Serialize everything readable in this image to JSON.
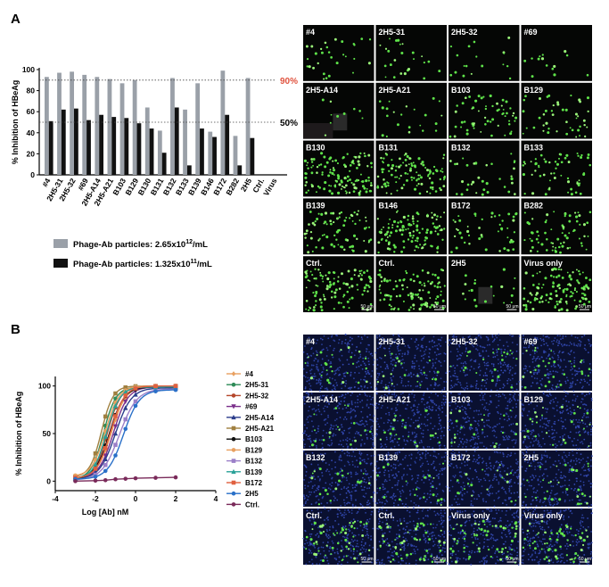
{
  "panel_a": {
    "label": "A",
    "legend": {
      "gray_text": "Phage-Ab particles: 2.65x10",
      "gray_exp": "12",
      "gray_unit": "/mL",
      "black_text": "Phage-Ab particles: 1.325x10",
      "black_exp": "11",
      "black_unit": "/mL"
    },
    "ref_lines": [
      {
        "value": 90,
        "label": "90%",
        "color": "#e0533f"
      },
      {
        "value": 50,
        "label": "50%",
        "color": "#000000"
      }
    ],
    "images": {
      "labels": [
        "#4",
        "2H5-31",
        "2H5-32",
        "#69",
        "2H5-A14",
        "2H5-A21",
        "B103",
        "B129",
        "B130",
        "B131",
        "B132",
        "B133",
        "B139",
        "B146",
        "B172",
        "B282",
        "Ctrl.",
        "Ctrl.",
        "2H5",
        "Virus only"
      ],
      "scale_bar": "50 μm",
      "density": [
        30,
        25,
        18,
        14,
        10,
        22,
        60,
        45,
        130,
        110,
        35,
        60,
        80,
        120,
        50,
        70,
        110,
        110,
        20,
        120
      ],
      "patch_tiles": [
        4,
        18
      ]
    }
  },
  "panel_b": {
    "label": "B",
    "legend": [
      {
        "label": "#4",
        "color": "#e8a060",
        "marker": "diamond"
      },
      {
        "label": "2H5-31",
        "color": "#2e8b57",
        "marker": "circle"
      },
      {
        "label": "2H5-32",
        "color": "#b5472b",
        "marker": "circle"
      },
      {
        "label": "#69",
        "color": "#7a2f8a",
        "marker": "triangle-down"
      },
      {
        "label": "2H5-A14",
        "color": "#2c3e8c",
        "marker": "triangle"
      },
      {
        "label": "2H5-A21",
        "color": "#a08040",
        "marker": "square"
      },
      {
        "label": "B103",
        "color": "#111111",
        "marker": "circle"
      },
      {
        "label": "B129",
        "color": "#e8a060",
        "marker": "circle"
      },
      {
        "label": "B132",
        "color": "#9b7fc8",
        "marker": "square"
      },
      {
        "label": "B139",
        "color": "#2aa198",
        "marker": "triangle"
      },
      {
        "label": "B172",
        "color": "#e06040",
        "marker": "square"
      },
      {
        "label": "2H5",
        "color": "#2a70c8",
        "marker": "circle"
      },
      {
        "label": "Ctrl.",
        "color": "#7a2a5a",
        "marker": "circle"
      }
    ],
    "images": {
      "labels": [
        "#4",
        "2H5-31",
        "2H5-32",
        "#69",
        "2H5-A14",
        "2H5-A21",
        "B103",
        "B129",
        "B132",
        "B139",
        "B172",
        "2H5",
        "Ctrl.",
        "Ctrl.",
        "Virus only",
        "Virus only"
      ],
      "scale_bar": "50 μm",
      "density": [
        25,
        20,
        22,
        30,
        18,
        20,
        20,
        25,
        22,
        20,
        18,
        30,
        55,
        55,
        60,
        60
      ]
    }
  },
  "chart_data": [
    {
      "type": "bar",
      "ylabel": "% Inhibition of HBeAg",
      "xlabel": "",
      "ylim": [
        0,
        100
      ],
      "yticks": [
        0,
        20,
        40,
        60,
        80,
        100
      ],
      "categories": [
        "#4",
        "2H5-31",
        "2H5-32",
        "#69",
        "2H5-A14",
        "2H5-A21",
        "B103",
        "B129",
        "B130",
        "B131",
        "B132",
        "B133",
        "B139",
        "B146",
        "B172",
        "B282",
        "2H5",
        "Ctrl.",
        "Virus"
      ],
      "series": [
        {
          "name": "Phage-Ab particles: 2.65x10^12/mL",
          "color": "#9aa0a8",
          "values": [
            93,
            97,
            98,
            95,
            93,
            91,
            87,
            90,
            64,
            42,
            92,
            62,
            87,
            41,
            99,
            37,
            92,
            0,
            0
          ]
        },
        {
          "name": "Phage-Ab particles: 1.325x10^11/mL",
          "color": "#111111",
          "values": [
            51,
            62,
            63,
            52,
            57,
            55,
            54,
            49,
            44,
            21,
            64,
            9,
            44,
            36,
            57,
            9,
            35,
            0,
            0
          ]
        }
      ],
      "grid": false
    },
    {
      "type": "line",
      "xlabel": "Log [Ab] nM",
      "ylabel": "% Inhibition of HBeAg",
      "xlim": [
        -4,
        4
      ],
      "ylim": [
        -10,
        110
      ],
      "xticks": [
        -4,
        -2,
        0,
        2,
        4
      ],
      "yticks": [
        0,
        50,
        100
      ],
      "x": [
        -3,
        -2,
        -1.5,
        -1,
        -0.5,
        0,
        1,
        2
      ],
      "series": [
        {
          "name": "#4",
          "ec50": -1.2,
          "hill": 1.2,
          "top": 100,
          "bottom": 3
        },
        {
          "name": "2H5-31",
          "ec50": -1.6,
          "hill": 1.4,
          "top": 99,
          "bottom": 2
        },
        {
          "name": "2H5-32",
          "ec50": -1.4,
          "hill": 1.3,
          "top": 100,
          "bottom": 2
        },
        {
          "name": "#69",
          "ec50": -1.1,
          "hill": 1.2,
          "top": 99,
          "bottom": 3
        },
        {
          "name": "2H5-A14",
          "ec50": -1.0,
          "hill": 1.1,
          "top": 98,
          "bottom": 2
        },
        {
          "name": "2H5-A21",
          "ec50": -1.7,
          "hill": 1.5,
          "top": 100,
          "bottom": 4
        },
        {
          "name": "B103",
          "ec50": -1.3,
          "hill": 1.2,
          "top": 99,
          "bottom": 2
        },
        {
          "name": "B129",
          "ec50": -1.5,
          "hill": 1.3,
          "top": 100,
          "bottom": 5
        },
        {
          "name": "B132",
          "ec50": -0.8,
          "hill": 1.0,
          "top": 97,
          "bottom": 1
        },
        {
          "name": "B139",
          "ec50": -1.45,
          "hill": 1.3,
          "top": 99,
          "bottom": 2
        },
        {
          "name": "B172",
          "ec50": -1.25,
          "hill": 1.25,
          "top": 100,
          "bottom": 3
        },
        {
          "name": "2H5",
          "ec50": -0.6,
          "hill": 1.1,
          "top": 96,
          "bottom": 2
        },
        {
          "name": "Ctrl.",
          "flat": [
            0,
            0.5,
            1,
            2,
            2.5,
            3,
            3.5,
            4
          ]
        }
      ]
    }
  ]
}
